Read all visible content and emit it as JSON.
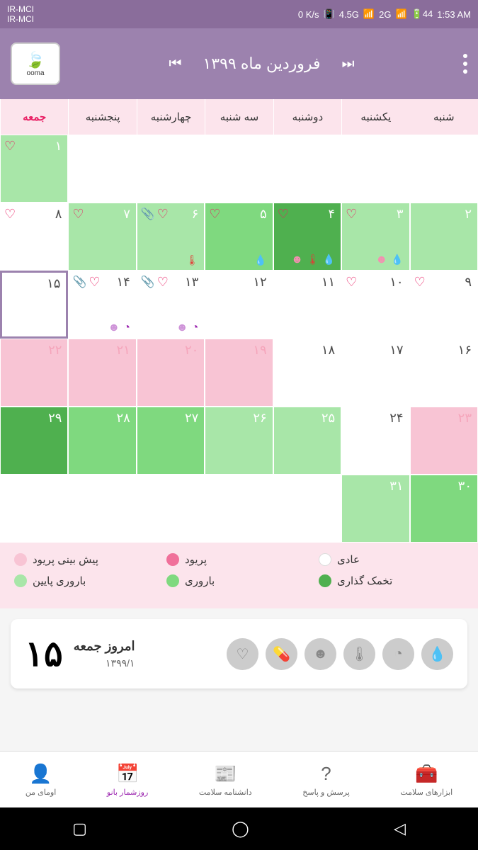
{
  "status": {
    "carrier1": "IR-MCI",
    "carrier2": "IR-MCI",
    "speed": "0 K/s",
    "net1": "4.5G",
    "net2": "2G",
    "battery": "44",
    "time": "1:53 AM"
  },
  "header": {
    "logo_text": "ooma",
    "month_title": "فروردین ماه ۱۳۹۹"
  },
  "weekdays": [
    "شنبه",
    "یکشنبه",
    "دوشنبه",
    "سه شنبه",
    "چهارشنبه",
    "پنجشنبه",
    "جمعه"
  ],
  "today_weekday_index": 6,
  "days": [
    [
      {
        "num": "",
        "bg": "",
        "icons": [],
        "bottom": []
      },
      {
        "num": "",
        "bg": "",
        "icons": [],
        "bottom": []
      },
      {
        "num": "",
        "bg": "",
        "icons": [],
        "bottom": []
      },
      {
        "num": "",
        "bg": "",
        "icons": [],
        "bottom": []
      },
      {
        "num": "",
        "bg": "",
        "icons": [],
        "bottom": []
      },
      {
        "num": "",
        "bg": "",
        "icons": [],
        "bottom": []
      },
      {
        "num": "۱",
        "bg": "green-light",
        "num_light": true,
        "icons": [
          "heart"
        ],
        "bottom": []
      }
    ],
    [
      {
        "num": "۲",
        "bg": "green-light",
        "num_light": true,
        "icons": [],
        "bottom": []
      },
      {
        "num": "۳",
        "bg": "green-light",
        "num_light": true,
        "icons": [
          "heart"
        ],
        "bottom": [
          "drop",
          "smile-pink"
        ]
      },
      {
        "num": "۴",
        "bg": "green-dark",
        "num_light": true,
        "icons": [
          "heart"
        ],
        "bottom": [
          "drop",
          "temp",
          "smile-pink"
        ]
      },
      {
        "num": "۵",
        "bg": "green-mid",
        "num_light": true,
        "icons": [
          "heart"
        ],
        "bottom": [
          "drop"
        ]
      },
      {
        "num": "۶",
        "bg": "green-light",
        "num_light": true,
        "icons": [
          "heart",
          "clip"
        ],
        "bottom": [
          "temp"
        ]
      },
      {
        "num": "۷",
        "bg": "green-light",
        "num_light": true,
        "icons": [
          "heart"
        ],
        "bottom": []
      },
      {
        "num": "۸",
        "bg": "",
        "icons": [
          "heart"
        ],
        "bottom": []
      }
    ],
    [
      {
        "num": "۹",
        "bg": "",
        "icons": [
          "heart"
        ],
        "bottom": []
      },
      {
        "num": "۱۰",
        "bg": "",
        "icons": [
          "heart"
        ],
        "bottom": []
      },
      {
        "num": "۱۱",
        "bg": "",
        "icons": [],
        "bottom": []
      },
      {
        "num": "۱۲",
        "bg": "",
        "icons": [],
        "bottom": []
      },
      {
        "num": "۱۳",
        "bg": "",
        "icons": [
          "heart",
          "clip"
        ],
        "bottom": [
          "compass",
          "smile-purple"
        ]
      },
      {
        "num": "۱۴",
        "bg": "",
        "icons": [
          "heart",
          "clip"
        ],
        "bottom": [
          "compass",
          "smile-purple"
        ]
      },
      {
        "num": "۱۵",
        "bg": "",
        "selected": true,
        "icons": [],
        "bottom": []
      }
    ],
    [
      {
        "num": "۱۶",
        "bg": "",
        "icons": [],
        "bottom": []
      },
      {
        "num": "۱۷",
        "bg": "",
        "icons": [],
        "bottom": []
      },
      {
        "num": "۱۸",
        "bg": "",
        "icons": [],
        "bottom": []
      },
      {
        "num": "۱۹",
        "bg": "pink",
        "num_pink": true,
        "icons": [],
        "bottom": []
      },
      {
        "num": "۲۰",
        "bg": "pink",
        "num_pink": true,
        "icons": [],
        "bottom": []
      },
      {
        "num": "۲۱",
        "bg": "pink",
        "num_pink": true,
        "icons": [],
        "bottom": []
      },
      {
        "num": "۲۲",
        "bg": "pink",
        "num_pink": true,
        "icons": [],
        "bottom": []
      }
    ],
    [
      {
        "num": "۲۳",
        "bg": "pink",
        "num_pink": true,
        "icons": [],
        "bottom": []
      },
      {
        "num": "۲۴",
        "bg": "",
        "icons": [],
        "bottom": []
      },
      {
        "num": "۲۵",
        "bg": "green-light",
        "num_light": true,
        "icons": [],
        "bottom": []
      },
      {
        "num": "۲۶",
        "bg": "green-light",
        "num_light": true,
        "icons": [],
        "bottom": []
      },
      {
        "num": "۲۷",
        "bg": "green-mid",
        "num_light": true,
        "icons": [],
        "bottom": []
      },
      {
        "num": "۲۸",
        "bg": "green-mid",
        "num_light": true,
        "icons": [],
        "bottom": []
      },
      {
        "num": "۲۹",
        "bg": "green-dark",
        "num_light": true,
        "icons": [],
        "bottom": []
      }
    ],
    [
      {
        "num": "۳۰",
        "bg": "green-mid",
        "num_light": true,
        "icons": [],
        "bottom": []
      },
      {
        "num": "۳۱",
        "bg": "green-light",
        "num_light": true,
        "icons": [],
        "bottom": []
      },
      {
        "num": "",
        "bg": "",
        "icons": [],
        "bottom": []
      },
      {
        "num": "",
        "bg": "",
        "icons": [],
        "bottom": []
      },
      {
        "num": "",
        "bg": "",
        "icons": [],
        "bottom": []
      },
      {
        "num": "",
        "bg": "",
        "icons": [],
        "bottom": []
      },
      {
        "num": "",
        "bg": "",
        "icons": [],
        "bottom": []
      }
    ]
  ],
  "legend": [
    {
      "label": "عادی",
      "color": "#ffffff"
    },
    {
      "label": "پریود",
      "color": "#f0709a"
    },
    {
      "label": "پیش بینی پریود",
      "color": "#f8c4d4"
    },
    {
      "label": "تخمک گذاری",
      "color": "#4fb04f"
    },
    {
      "label": "باروری",
      "color": "#7fd97f"
    },
    {
      "label": "باروری پایین",
      "color": "#a8e6a8"
    }
  ],
  "today_card": {
    "big": "۱۵",
    "title": "امروز جمعه",
    "date": "۱۳۹۹/۱",
    "icons": [
      "heart",
      "pill",
      "smile",
      "temp",
      "gauge",
      "drop"
    ]
  },
  "bottom_nav": [
    {
      "label": "ابزارهای سلامت",
      "icon": "🧰"
    },
    {
      "label": "پرسش و پاسخ",
      "icon": "?"
    },
    {
      "label": "دانشنامه سلامت",
      "icon": "📰"
    },
    {
      "label": "روزشمار بانو",
      "icon": "📅",
      "active": true
    },
    {
      "label": "اومای من",
      "icon": "👤"
    }
  ],
  "colors": {
    "header": "#9c82ae",
    "status": "#8a6d9b",
    "weekday_bg": "#fce4ec",
    "accent": "#e91e63",
    "purple": "#9c27b0"
  }
}
